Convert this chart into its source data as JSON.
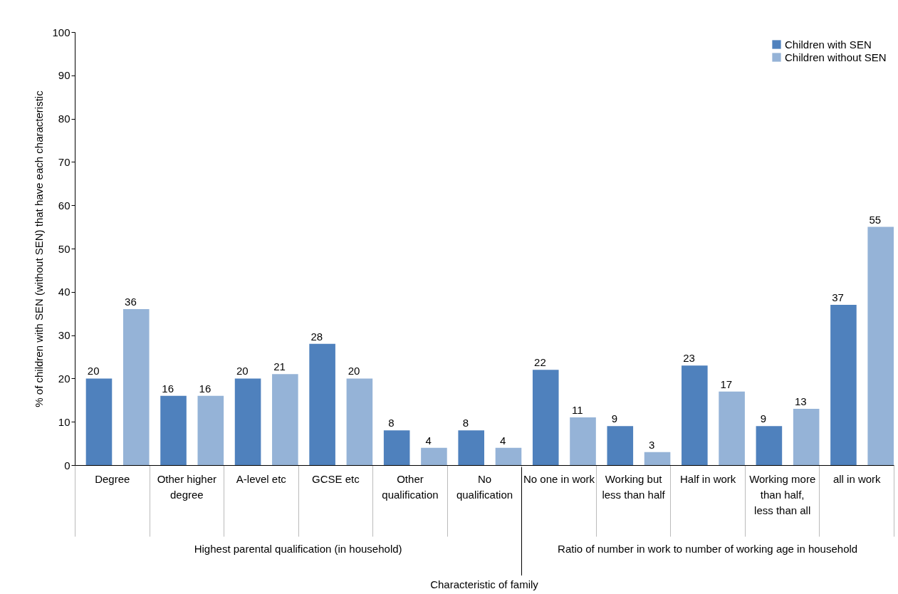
{
  "chart_data": {
    "type": "bar",
    "categories": [
      "Degree",
      "Other higher degree",
      "A-level etc",
      "GCSE etc",
      "Other qualification",
      "No qualification",
      "No one in work",
      "Working but less than half",
      "Half in work",
      "Working more than half, less than all",
      "all in work"
    ],
    "series": [
      {
        "name": "Children with SEN",
        "color": "#4f81bd",
        "values": [
          20,
          16,
          20,
          28,
          8,
          8,
          22,
          9,
          23,
          9,
          37
        ]
      },
      {
        "name": "Children without SEN",
        "color": "#95b3d7",
        "values": [
          36,
          16,
          21,
          20,
          4,
          4,
          11,
          3,
          17,
          13,
          55
        ]
      }
    ],
    "ylim": [
      0,
      100
    ],
    "yticks": [
      0,
      10,
      20,
      30,
      40,
      50,
      60,
      70,
      80,
      90,
      100
    ],
    "ylabel": "% of children with SEN (without SEN) that have each characteristic",
    "annotations": [
      "Highest parental qualification (in household)",
      "Ratio of number in work to number of working age in household",
      "Characteristic of family"
    ],
    "data_labels": true,
    "legend": "top right",
    "grid": false
  }
}
